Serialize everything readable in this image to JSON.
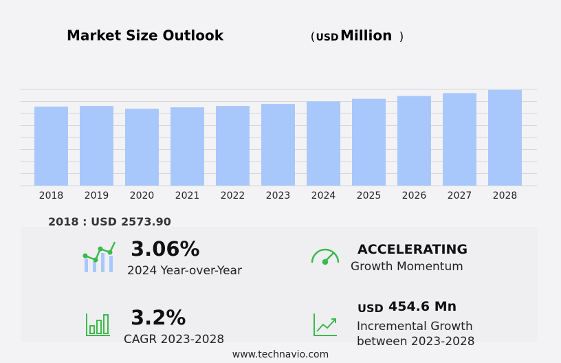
{
  "chart_data": {
    "type": "bar",
    "title": "Market Size Outlook",
    "title_paren_open": "(",
    "title_unit": "USD",
    "title_scale": "Million",
    "title_paren_close": ")",
    "categories": [
      "2018",
      "2019",
      "2020",
      "2021",
      "2022",
      "2023",
      "2024",
      "2025",
      "2026",
      "2027",
      "2028"
    ],
    "values": [
      2573.9,
      2596,
      2507,
      2552,
      2596,
      2663,
      2744,
      2830,
      2922,
      3015,
      3118
    ],
    "color": "#a8c8fc",
    "ylim": [
      0,
      3136
    ],
    "grid_lines": [
      0,
      392,
      784,
      1176,
      1568,
      1960,
      2352,
      2744,
      3136
    ],
    "grid": true
  },
  "stats": {
    "base_label": "2018 : USD",
    "base_value": "2573.90",
    "yoy_value": "3.06%",
    "yoy_label": "2024 Year-over-Year",
    "momentum_value": "ACCELERATING",
    "momentum_label": "Growth Momentum",
    "cagr_value": "3.2%",
    "cagr_label": "CAGR 2023-2028",
    "incremental_unit": "USD",
    "incremental_value": "454.6 Mn",
    "incremental_label_1": "Incremental Growth",
    "incremental_label_2": "between 2023-2028"
  },
  "footer": "www.technavio.com"
}
